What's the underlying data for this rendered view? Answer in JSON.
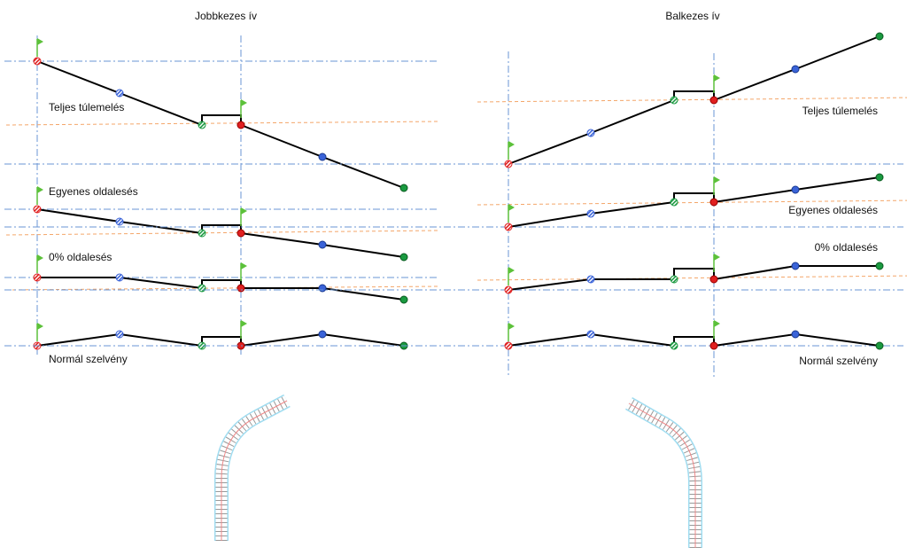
{
  "left": {
    "title": "Jobbkezes ív",
    "labels": [
      "Teljes túlemelés",
      "Egyenes oldalesés",
      "0% oldalesés",
      "Normál szelvény"
    ]
  },
  "right": {
    "title": "Balkezes ív",
    "labels": [
      "Teljes túlemelés",
      "Egyenes oldalesés",
      "0% oldalesés",
      "Normál szelvény"
    ]
  },
  "colors": {
    "profile_line": "#000000",
    "axis_dashdot": "#6a96d4",
    "superelevation_dashed": "#f4a66a",
    "flag": "#5cc13a",
    "point_start": "#e02020",
    "point_mid": "#3a63d8",
    "point_end": "#1a9a40"
  }
}
